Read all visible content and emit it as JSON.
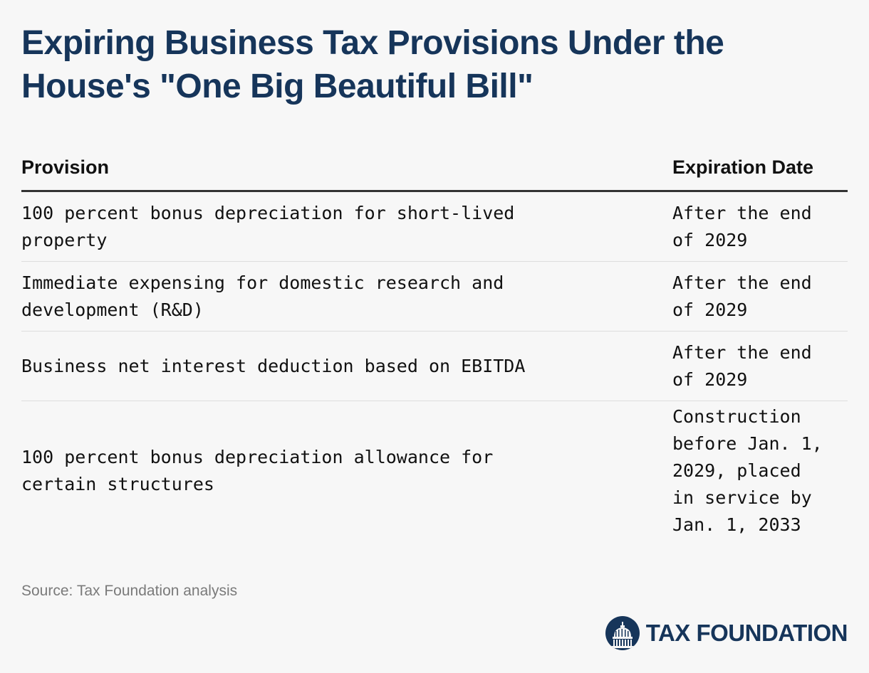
{
  "title_line1": "Expiring Business Tax Provisions Under the",
  "title_line2": "House's \"One Big Beautiful Bill\"",
  "table": {
    "headers": [
      "Provision",
      "Expiration Date"
    ],
    "rows": [
      {
        "provision": "100 percent bonus depreciation for short-lived\nproperty",
        "expiration": "After the end\nof 2029"
      },
      {
        "provision": "Immediate expensing for domestic research and\ndevelopment (R&D)",
        "expiration": "After the end\nof 2029"
      },
      {
        "provision": "Business net interest deduction based on EBITDA",
        "expiration": "After the end\nof 2029"
      },
      {
        "provision": "100 percent bonus depreciation allowance for\ncertain structures",
        "expiration": "Construction\nbefore Jan. 1,\n2029, placed\nin service by\nJan. 1, 2033"
      }
    ]
  },
  "source": "Source: Tax Foundation analysis",
  "logo": {
    "text": "TAX FOUNDATION",
    "icon": "capitol-dome-icon",
    "color": "#16355a"
  },
  "colors": {
    "title": "#16355a",
    "background": "#f7f7f7",
    "header_rule": "#333333",
    "row_divider": "#dddddd",
    "source_text": "#7a7a7a"
  }
}
